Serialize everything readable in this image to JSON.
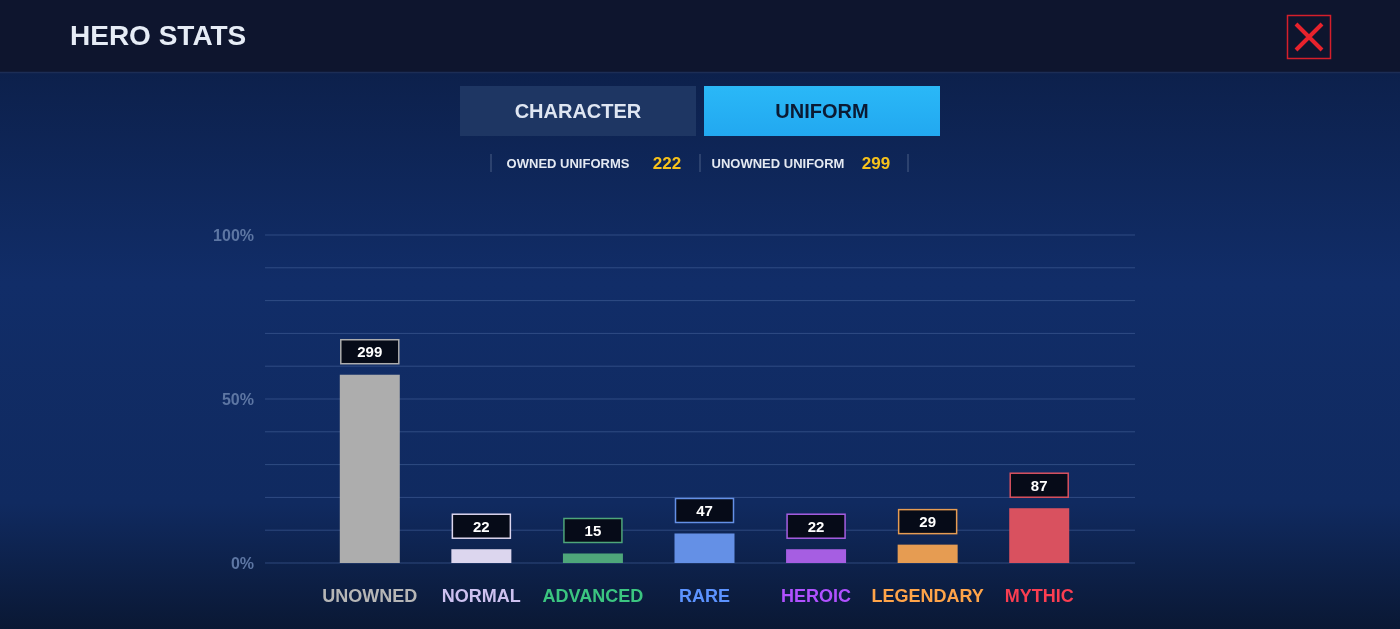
{
  "chart_data": {
    "type": "bar",
    "title": "HERO STATS",
    "categories": [
      "UNOWNED",
      "NORMAL",
      "ADVANCED",
      "RARE",
      "HEROIC",
      "LEGENDARY",
      "MYTHIC"
    ],
    "values": [
      57.4,
      4.2,
      2.9,
      9.0,
      4.2,
      5.6,
      16.7
    ],
    "colors": [
      "#adadad",
      "#dcd6ee",
      "#4ea67a",
      "#6490e6",
      "#a65ee2",
      "#e69c52",
      "#d9515f"
    ],
    "ylim": [
      0,
      100
    ],
    "yticks": [
      {
        "value": 0,
        "label": "0%"
      },
      {
        "value": 10,
        "label": null
      },
      {
        "value": 20,
        "label": null
      },
      {
        "value": 30,
        "label": null
      },
      {
        "value": 40,
        "label": null
      },
      {
        "value": 50,
        "label": "50%"
      },
      {
        "value": 60,
        "label": null
      },
      {
        "value": 70,
        "label": null
      },
      {
        "value": 80,
        "label": null
      },
      {
        "value": 90,
        "label": null
      },
      {
        "value": 100,
        "label": "100%"
      }
    ],
    "grid": "y",
    "annotations": [
      "CHARACTER",
      "UNIFORM",
      "OWNED UNIFORMS",
      "222",
      "UNOWNED UNIFORM",
      "299",
      {
        "text": "299",
        "x": "UNOWNED",
        "y": 57.4
      },
      {
        "text": "22",
        "x": "NORMAL",
        "y": 4.2
      },
      {
        "text": "15",
        "x": "ADVANCED",
        "y": 2.9
      },
      {
        "text": "47",
        "x": "RARE",
        "y": 9.0
      },
      {
        "text": "22",
        "x": "HEROIC",
        "y": 4.2
      },
      {
        "text": "29",
        "x": "LEGENDARY",
        "y": 5.6
      },
      {
        "text": "87",
        "x": "MYTHIC",
        "y": 16.7
      }
    ]
  }
}
